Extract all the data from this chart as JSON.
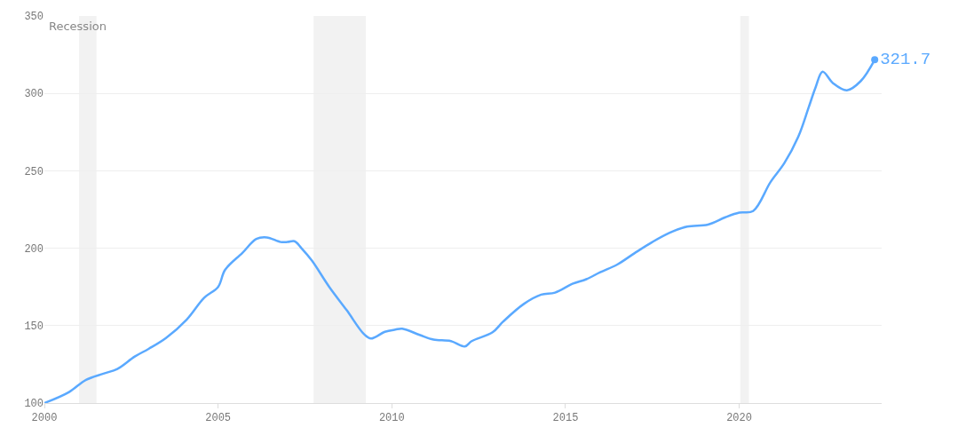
{
  "chart_data": {
    "type": "line",
    "x": [
      2000.0,
      2000.7,
      2001.2,
      2001.7,
      2002.1,
      2002.6,
      2003.0,
      2003.5,
      2004.1,
      2004.6,
      2005.0,
      2005.2,
      2005.7,
      2006.1,
      2006.4,
      2006.8,
      2007.0,
      2007.2,
      2007.4,
      2007.7,
      2008.2,
      2008.7,
      2009.2,
      2009.4,
      2009.8,
      2010.1,
      2010.3,
      2010.8,
      2011.2,
      2011.7,
      2012.1,
      2012.3,
      2012.9,
      2013.2,
      2013.8,
      2014.3,
      2014.7,
      2015.2,
      2015.6,
      2016.0,
      2016.5,
      2017.0,
      2017.5,
      2018.0,
      2018.5,
      2019.1,
      2019.6,
      2020.0,
      2020.4,
      2020.9,
      2021.3,
      2021.7,
      2022.0,
      2022.2,
      2022.4,
      2022.7,
      2023.1,
      2023.5,
      2023.9
    ],
    "values": [
      100,
      107,
      115,
      119,
      122,
      130,
      135,
      142,
      154,
      168,
      175,
      186,
      197,
      206,
      207,
      204,
      204,
      204.5,
      200,
      192,
      175,
      160,
      144.5,
      141.7,
      146,
      147.4,
      148,
      144,
      141,
      140,
      136.5,
      140,
      145.7,
      152.5,
      164,
      170,
      171.3,
      177,
      180,
      184.5,
      189.6,
      197,
      204,
      210,
      214,
      215.3,
      220,
      223,
      224,
      242.7,
      255,
      272,
      291,
      304,
      314,
      306.6,
      302,
      308,
      321.7
    ],
    "value_labels": [
      null,
      null,
      null,
      null,
      null,
      null,
      null,
      null,
      null,
      null,
      null,
      null,
      null,
      null,
      null,
      null,
      null,
      null,
      null,
      null,
      null,
      null,
      null,
      null,
      null,
      null,
      null,
      null,
      null,
      null,
      null,
      null,
      null,
      null,
      null,
      null,
      null,
      null,
      null,
      null,
      null,
      null,
      null,
      null,
      null,
      null,
      null,
      null,
      null,
      null,
      null,
      null,
      null,
      null,
      null,
      null,
      null,
      null,
      "321.7"
    ],
    "color": "#5aa9ff",
    "xlim": [
      2000,
      2024.1
    ],
    "xticks": [
      2000,
      2005,
      2010,
      2015,
      2020
    ],
    "ylim": [
      100,
      350
    ],
    "yticks": [
      100,
      150,
      200,
      250,
      300,
      350
    ],
    "grid": "y",
    "bands": [
      {
        "axis": "x",
        "from": 2001.0,
        "to": 2001.5,
        "color": "#f2f2f2"
      },
      {
        "axis": "x",
        "from": 2007.75,
        "to": 2009.25,
        "color": "#f2f2f2"
      },
      {
        "axis": "x",
        "from": 2020.03,
        "to": 2020.28,
        "color": "#f2f2f2"
      }
    ],
    "annotations": [
      "Recession"
    ]
  }
}
